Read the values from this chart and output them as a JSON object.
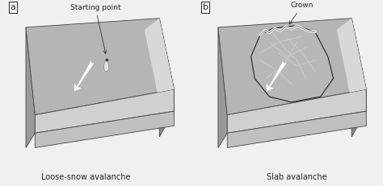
{
  "bg_color": "#f0f0f0",
  "border_color": "#444444",
  "label_a": "a",
  "label_b": "b",
  "caption_a": "Loose-snow avalanche",
  "caption_b": "Slab avalanche",
  "annotation_a": "Starting point",
  "annotation_b": "Crown",
  "slope_color": "#b5b5b5",
  "right_tri_color": "#888888",
  "left_tri_color": "#999999",
  "top_stripe_color": "#d8d8d8",
  "base_top_color": "#d0d0d0",
  "base_front_color": "#c0c0c0",
  "base_side_color": "#a8a8a8",
  "arrow_color": "#dddddd",
  "text_color": "#222222",
  "caption_fontsize": 7,
  "label_fontsize": 8,
  "annot_fontsize": 6.5,
  "slab_outline_color": "#222222",
  "crown_color": "#ffffff",
  "crack_color": "#cccccc"
}
